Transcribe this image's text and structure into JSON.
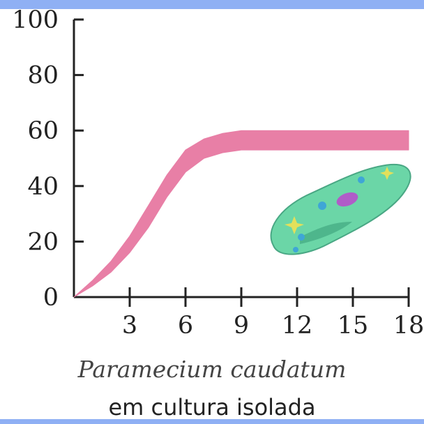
{
  "chart_data": {
    "type": "area",
    "x_ticks": [
      3,
      6,
      9,
      12,
      15,
      18
    ],
    "y_ticks": [
      0,
      20,
      40,
      60,
      80,
      100
    ],
    "xlim": [
      0,
      18
    ],
    "ylim": [
      0,
      100
    ],
    "grid": false,
    "series": [
      {
        "x": [
          0,
          1,
          2,
          3,
          4,
          5,
          6,
          7,
          8,
          9,
          10,
          12,
          14,
          16,
          18
        ],
        "lower": [
          0,
          4,
          9,
          16,
          25,
          36,
          45,
          50,
          52,
          53,
          53,
          53,
          53,
          53,
          53
        ],
        "upper": [
          0,
          6,
          13,
          22,
          33,
          44,
          53,
          57,
          59,
          60,
          60,
          60,
          60,
          60,
          60
        ],
        "color": "#e87fa6"
      }
    ],
    "xlabel": "Paramecium caudatum",
    "caption": "em cultura isolada"
  },
  "illustration": {
    "name": "paramecium-illustration",
    "body_color": "#5fd3a0",
    "nucleus_color": "#b05cc8",
    "vacuole_color": "#3fa6d6"
  },
  "frame": {
    "accent": "#8fb0f4"
  }
}
